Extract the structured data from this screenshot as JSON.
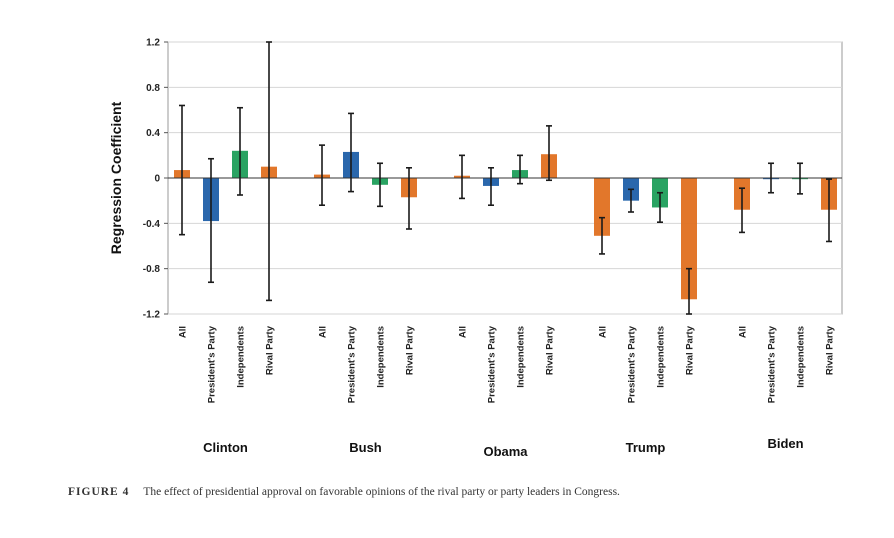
{
  "chart_data": {
    "type": "bar",
    "ylabel": "Regression Coefficient",
    "ylim": [
      -1.2,
      1.2
    ],
    "yticks": [
      1.2,
      0.8,
      0.4,
      0,
      -0.4,
      -0.8,
      -1.2
    ],
    "ytick_labels": [
      "1.2",
      "0.8",
      "0.4",
      "0",
      "-0.4",
      "-0.8",
      "-1.2"
    ],
    "grid": true,
    "category_labels": [
      "All",
      "President's Party",
      "Independents",
      "Rival Party"
    ],
    "groups": [
      {
        "name": "Clinton",
        "bars": [
          {
            "category": "All",
            "value": 0.07,
            "low": -0.5,
            "high": 0.64,
            "color": "#E07020"
          },
          {
            "category": "President's Party",
            "value": -0.38,
            "low": -0.92,
            "high": 0.17,
            "color": "#1F5FA8"
          },
          {
            "category": "Independents",
            "value": 0.24,
            "low": -0.15,
            "high": 0.62,
            "color": "#1E9E5A"
          },
          {
            "category": "Rival Party",
            "value": 0.1,
            "low": -1.08,
            "high": 1.2,
            "color": "#E07020"
          }
        ]
      },
      {
        "name": "Bush",
        "bars": [
          {
            "category": "All",
            "value": 0.03,
            "low": -0.24,
            "high": 0.29,
            "color": "#E07020"
          },
          {
            "category": "President's Party",
            "value": 0.23,
            "low": -0.12,
            "high": 0.57,
            "color": "#1F5FA8"
          },
          {
            "category": "Independents",
            "value": -0.06,
            "low": -0.25,
            "high": 0.13,
            "color": "#1E9E5A"
          },
          {
            "category": "Rival Party",
            "value": -0.17,
            "low": -0.45,
            "high": 0.09,
            "color": "#E07020"
          }
        ]
      },
      {
        "name": "Obama",
        "bars": [
          {
            "category": "All",
            "value": 0.02,
            "low": -0.18,
            "high": 0.2,
            "color": "#E07020"
          },
          {
            "category": "President's Party",
            "value": -0.07,
            "low": -0.24,
            "high": 0.09,
            "color": "#1F5FA8"
          },
          {
            "category": "Independents",
            "value": 0.07,
            "low": -0.05,
            "high": 0.2,
            "color": "#1E9E5A"
          },
          {
            "category": "Rival Party",
            "value": 0.21,
            "low": -0.02,
            "high": 0.46,
            "color": "#E07020"
          }
        ]
      },
      {
        "name": "Trump",
        "bars": [
          {
            "category": "All",
            "value": -0.51,
            "low": -0.67,
            "high": -0.35,
            "color": "#E07020"
          },
          {
            "category": "President's Party",
            "value": -0.2,
            "low": -0.3,
            "high": -0.1,
            "color": "#1F5FA8"
          },
          {
            "category": "Independents",
            "value": -0.26,
            "low": -0.39,
            "high": -0.13,
            "color": "#1E9E5A"
          },
          {
            "category": "Rival Party",
            "value": -1.07,
            "low": -1.2,
            "high": -0.8,
            "color": "#E07020"
          }
        ]
      },
      {
        "name": "Biden",
        "bars": [
          {
            "category": "All",
            "value": -0.28,
            "low": -0.48,
            "high": -0.09,
            "color": "#E07020"
          },
          {
            "category": "President's Party",
            "value": 0.0,
            "low": -0.13,
            "high": 0.13,
            "color": "#1F5FA8"
          },
          {
            "category": "Independents",
            "value": 0.0,
            "low": -0.14,
            "high": 0.13,
            "color": "#1E9E5A"
          },
          {
            "category": "Rival Party",
            "value": -0.28,
            "low": -0.56,
            "high": -0.01,
            "color": "#E07020"
          }
        ]
      }
    ]
  },
  "caption": {
    "label": "FIGURE 4",
    "text": "The effect of presidential approval on favorable opinions of the rival party or party leaders in Congress."
  }
}
